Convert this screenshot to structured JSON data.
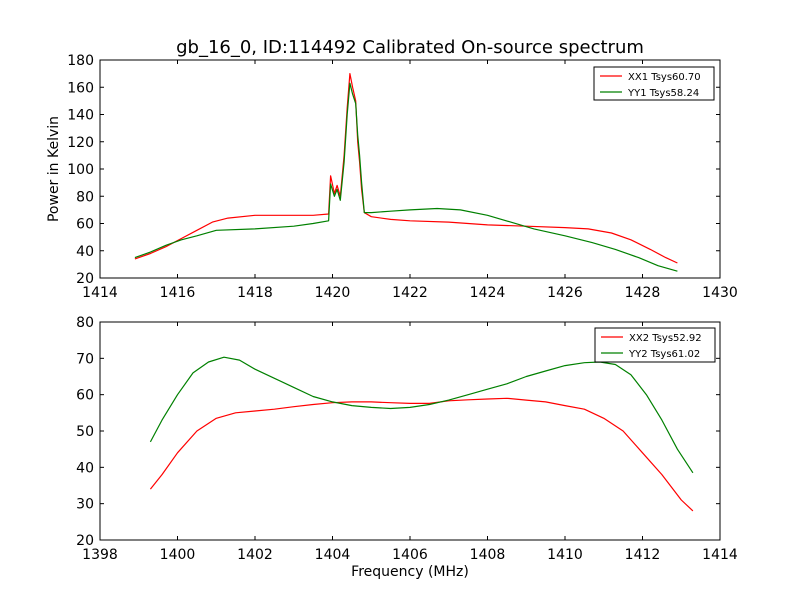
{
  "title": "gb_16_0, ID:114492 Calibrated On-source spectrum",
  "colors": {
    "red": "#ff0000",
    "green": "#008000"
  },
  "chart_data": [
    {
      "type": "line",
      "xlabel": "",
      "ylabel": "Power in Kelvin",
      "xlim": [
        1414,
        1430
      ],
      "ylim": [
        20,
        180
      ],
      "xticks": [
        1414,
        1416,
        1418,
        1420,
        1422,
        1424,
        1426,
        1428,
        1430
      ],
      "yticks": [
        20,
        40,
        60,
        80,
        100,
        120,
        140,
        160,
        180
      ],
      "grid": false,
      "legend": "top-right",
      "series": [
        {
          "name": "XX1 Tsys60.70",
          "color": "#ff0000",
          "x": [
            1414.9,
            1415.3,
            1415.7,
            1416.1,
            1416.5,
            1416.9,
            1417.3,
            1418.0,
            1418.8,
            1419.5,
            1419.9,
            1419.95,
            1420.05,
            1420.12,
            1420.2,
            1420.3,
            1420.38,
            1420.45,
            1420.52,
            1420.6,
            1420.65,
            1420.7,
            1420.75,
            1420.82,
            1421.0,
            1421.5,
            1422.0,
            1423.0,
            1424.0,
            1425.0,
            1426.0,
            1426.6,
            1427.2,
            1427.7,
            1428.2,
            1428.6,
            1428.9
          ],
          "y": [
            34,
            38,
            43,
            49,
            55,
            61,
            64,
            66,
            66,
            66,
            67,
            95,
            82,
            88,
            80,
            110,
            145,
            170,
            160,
            150,
            120,
            105,
            85,
            68,
            65,
            63,
            62,
            61,
            59,
            58,
            57,
            56,
            53,
            48,
            41,
            35,
            31
          ]
        },
        {
          "name": "YY1 Tsys58.24",
          "color": "#008000",
          "x": [
            1414.9,
            1415.3,
            1415.7,
            1416.1,
            1416.5,
            1417.0,
            1418.0,
            1419.0,
            1419.5,
            1419.9,
            1419.95,
            1420.05,
            1420.12,
            1420.2,
            1420.3,
            1420.38,
            1420.45,
            1420.52,
            1420.6,
            1420.65,
            1420.7,
            1420.75,
            1420.82,
            1421.0,
            1421.5,
            1422.0,
            1422.7,
            1423.3,
            1424.0,
            1424.6,
            1425.2,
            1426.0,
            1426.7,
            1427.3,
            1427.9,
            1428.4,
            1428.9
          ],
          "y": [
            35,
            39,
            44,
            48,
            51,
            55,
            56,
            58,
            60,
            62,
            89,
            80,
            85,
            77,
            105,
            140,
            163,
            155,
            148,
            125,
            110,
            90,
            68,
            68,
            69,
            70,
            71,
            70,
            66,
            61,
            56,
            51,
            46,
            41,
            35,
            29,
            25
          ]
        }
      ]
    },
    {
      "type": "line",
      "xlabel": "Frequency (MHz)",
      "ylabel": "",
      "xlim": [
        1398,
        1414
      ],
      "ylim": [
        20,
        80
      ],
      "xticks": [
        1398,
        1400,
        1402,
        1404,
        1406,
        1408,
        1410,
        1412,
        1414
      ],
      "yticks": [
        20,
        30,
        40,
        50,
        60,
        70,
        80
      ],
      "grid": false,
      "legend": "top-right",
      "series": [
        {
          "name": "XX2 Tsys52.92",
          "color": "#ff0000",
          "x": [
            1399.3,
            1399.6,
            1400.0,
            1400.5,
            1401.0,
            1401.5,
            1402.0,
            1402.5,
            1403.0,
            1403.5,
            1404.0,
            1404.5,
            1405.0,
            1405.5,
            1406.0,
            1406.5,
            1407.0,
            1407.5,
            1408.0,
            1408.5,
            1409.0,
            1409.5,
            1410.0,
            1410.5,
            1411.0,
            1411.5,
            1412.0,
            1412.5,
            1413.0,
            1413.3
          ],
          "y": [
            34,
            38,
            44,
            50,
            53.5,
            55,
            55.5,
            56,
            56.7,
            57.3,
            57.8,
            58,
            58,
            57.8,
            57.6,
            57.6,
            58.3,
            58.6,
            58.8,
            59,
            58.5,
            58,
            57,
            56,
            53.5,
            50,
            44,
            38,
            31,
            28
          ]
        },
        {
          "name": "YY2 Tsys61.02",
          "color": "#008000",
          "x": [
            1399.3,
            1399.6,
            1400.0,
            1400.4,
            1400.8,
            1401.2,
            1401.6,
            1402.0,
            1402.5,
            1403.0,
            1403.5,
            1404.0,
            1404.5,
            1405.0,
            1405.5,
            1406.0,
            1406.5,
            1407.0,
            1407.5,
            1408.0,
            1408.5,
            1409.0,
            1409.5,
            1410.0,
            1410.5,
            1410.9,
            1411.3,
            1411.7,
            1412.1,
            1412.5,
            1412.9,
            1413.3
          ],
          "y": [
            47,
            53,
            60,
            66,
            69,
            70.3,
            69.5,
            67,
            64.5,
            62,
            59.5,
            58,
            57,
            56.5,
            56.2,
            56.5,
            57.3,
            58.5,
            60,
            61.5,
            63,
            65,
            66.5,
            68,
            68.8,
            69,
            68.3,
            65.5,
            60,
            53,
            45,
            38.5
          ]
        }
      ]
    }
  ]
}
